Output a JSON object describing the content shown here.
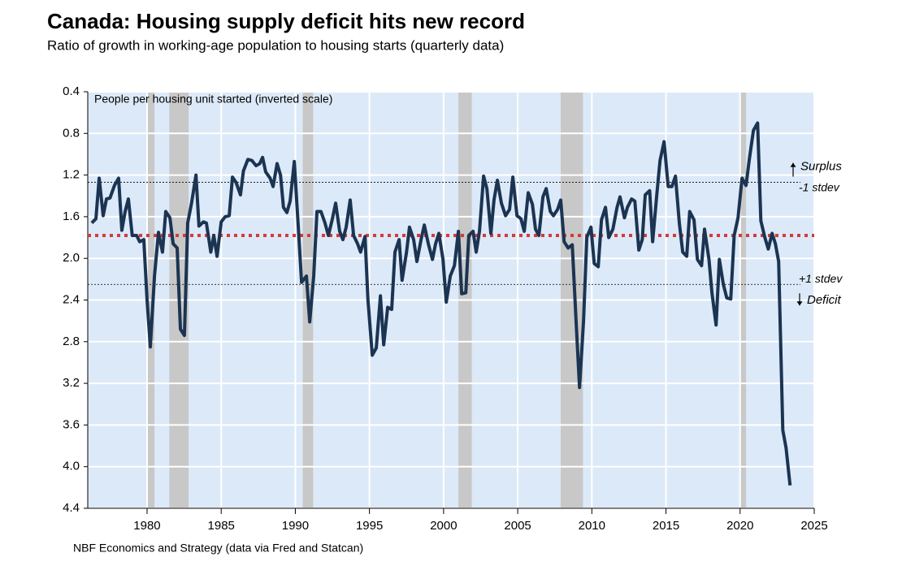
{
  "chart_data": {
    "type": "line",
    "title": "Canada: Housing supply deficit hits new record",
    "subtitle": "Ratio of growth in working-age population to housing starts (quarterly data)",
    "y_label": "People per housing unit started (inverted scale)",
    "source": "NBF Economics and Strategy (data via Fred and Statcan)",
    "color": "#1b3452",
    "y_inverted": true,
    "grid": true,
    "background": "#dce9f8",
    "xlim": [
      1976,
      2025
    ],
    "xticks": [
      1980,
      1985,
      1990,
      1995,
      2000,
      2005,
      2010,
      2015,
      2020,
      2025
    ],
    "ylim": [
      0.4,
      4.4
    ],
    "yticks": [
      0.4,
      0.8,
      1.2,
      1.6,
      {
        "value": 2.0,
        "label": "2.0"
      },
      2.4,
      2.8,
      3.2,
      3.6,
      {
        "value": 4.0,
        "label": "4.0"
      },
      4.4
    ],
    "shaded_periods": [
      [
        1980.0,
        1980.5
      ],
      [
        1981.5,
        1982.8
      ],
      [
        1990.5,
        1991.2
      ],
      [
        2001.0,
        2001.9
      ],
      [
        2007.9,
        2009.4
      ],
      [
        2020.0,
        2020.4
      ]
    ],
    "shade_color": "#c8c8c8",
    "mean_line": {
      "value": 1.78,
      "color": "#d63a3a"
    },
    "reference_lines": [
      {
        "name": "-1 stdev",
        "value": 1.27,
        "note": "Surplus"
      },
      {
        "name": "+1 stdev",
        "value": 2.25,
        "note": "Deficit"
      }
    ],
    "x": [
      1976.27,
      1976.55,
      1976.77,
      1977.04,
      1977.26,
      1977.5,
      1977.8,
      1978.08,
      1978.3,
      1978.52,
      1978.74,
      1979.0,
      1979.3,
      1979.5,
      1979.78,
      1980.0,
      1980.22,
      1980.5,
      1980.77,
      1981.04,
      1981.26,
      1981.54,
      1981.76,
      1982.03,
      1982.25,
      1982.52,
      1982.74,
      1983.0,
      1983.3,
      1983.5,
      1983.8,
      1984.0,
      1984.3,
      1984.5,
      1984.72,
      1985.0,
      1985.27,
      1985.54,
      1985.76,
      1986.0,
      1986.3,
      1986.5,
      1986.8,
      1987.07,
      1987.35,
      1987.6,
      1987.79,
      1988.0,
      1988.3,
      1988.5,
      1988.77,
      1989.0,
      1989.2,
      1989.43,
      1989.65,
      1989.93,
      1990.2,
      1990.42,
      1990.75,
      1990.97,
      1991.24,
      1991.46,
      1991.73,
      1992.0,
      1992.23,
      1992.5,
      1992.72,
      1992.99,
      1993.21,
      1993.43,
      1993.7,
      1993.93,
      1994.2,
      1994.4,
      1994.7,
      1994.9,
      1995.19,
      1995.46,
      1995.74,
      1995.96,
      1996.23,
      1996.5,
      1996.72,
      1997.0,
      1997.2,
      1997.5,
      1997.7,
      1997.98,
      1998.2,
      1998.48,
      1998.7,
      1998.97,
      1999.25,
      1999.46,
      1999.68,
      1999.96,
      2000.18,
      2000.45,
      2000.73,
      2001.0,
      2001.22,
      2001.5,
      2001.7,
      2001.99,
      2002.2,
      2002.42,
      2002.7,
      2002.92,
      2003.19,
      2003.4,
      2003.63,
      2003.9,
      2004.18,
      2004.45,
      2004.67,
      2004.95,
      2005.22,
      2005.44,
      2005.71,
      2005.99,
      2006.2,
      2006.43,
      2006.7,
      2006.92,
      2007.2,
      2007.41,
      2007.69,
      2007.9,
      2008.13,
      2008.4,
      2008.68,
      2008.95,
      2009.17,
      2009.44,
      2009.66,
      2009.94,
      2010.16,
      2010.43,
      2010.65,
      2010.92,
      2011.14,
      2011.42,
      2011.7,
      2011.9,
      2012.2,
      2012.4,
      2012.68,
      2012.9,
      2013.17,
      2013.4,
      2013.6,
      2013.9,
      2014.1,
      2014.38,
      2014.6,
      2014.87,
      2015.15,
      2015.4,
      2015.64,
      2015.9,
      2016.13,
      2016.4,
      2016.6,
      2016.89,
      2017.12,
      2017.4,
      2017.6,
      2017.9,
      2018.1,
      2018.38,
      2018.6,
      2018.87,
      2019.1,
      2019.37,
      2019.6,
      2019.86,
      2020.13,
      2020.4,
      2020.63,
      2020.9,
      2021.18,
      2021.4,
      2021.67,
      2021.9,
      2022.16,
      2022.38,
      2022.6,
      2022.88,
      2023.1,
      2023.37
    ],
    "values": [
      1.66,
      1.62,
      1.23,
      1.59,
      1.43,
      1.42,
      1.3,
      1.23,
      1.73,
      1.55,
      1.43,
      1.78,
      1.78,
      1.84,
      1.82,
      2.4,
      2.85,
      2.17,
      1.75,
      1.94,
      1.55,
      1.61,
      1.86,
      1.9,
      2.68,
      2.74,
      1.66,
      1.47,
      1.2,
      1.69,
      1.65,
      1.66,
      1.94,
      1.78,
      1.98,
      1.65,
      1.6,
      1.59,
      1.22,
      1.27,
      1.39,
      1.16,
      1.05,
      1.06,
      1.11,
      1.09,
      1.03,
      1.17,
      1.23,
      1.31,
      1.09,
      1.2,
      1.51,
      1.56,
      1.45,
      1.07,
      1.7,
      2.23,
      2.17,
      2.61,
      2.17,
      1.55,
      1.55,
      1.66,
      1.78,
      1.62,
      1.47,
      1.74,
      1.82,
      1.7,
      1.44,
      1.78,
      1.86,
      1.94,
      1.79,
      2.4,
      2.93,
      2.86,
      2.36,
      2.83,
      2.47,
      2.49,
      1.94,
      1.82,
      2.21,
      1.94,
      1.7,
      1.82,
      2.03,
      1.82,
      1.68,
      1.86,
      2.01,
      1.86,
      1.76,
      2.01,
      2.42,
      2.17,
      2.07,
      1.74,
      2.34,
      2.33,
      1.78,
      1.74,
      1.94,
      1.74,
      1.21,
      1.33,
      1.76,
      1.44,
      1.25,
      1.47,
      1.59,
      1.53,
      1.22,
      1.59,
      1.62,
      1.74,
      1.37,
      1.48,
      1.72,
      1.78,
      1.41,
      1.33,
      1.55,
      1.59,
      1.53,
      1.44,
      1.84,
      1.9,
      1.87,
      2.64,
      3.24,
      2.6,
      1.8,
      1.7,
      2.05,
      2.08,
      1.63,
      1.51,
      1.8,
      1.72,
      1.51,
      1.41,
      1.61,
      1.51,
      1.43,
      1.45,
      1.92,
      1.82,
      1.39,
      1.35,
      1.84,
      1.39,
      1.06,
      0.88,
      1.31,
      1.31,
      1.21,
      1.66,
      1.94,
      1.98,
      1.55,
      1.63,
      2.01,
      2.07,
      1.72,
      2.01,
      2.33,
      2.64,
      2.01,
      2.25,
      2.38,
      2.39,
      1.78,
      1.61,
      1.23,
      1.3,
      1.04,
      0.77,
      0.7,
      1.64,
      1.8,
      1.91,
      1.76,
      1.86,
      2.03,
      3.65,
      3.82,
      4.18
    ]
  }
}
